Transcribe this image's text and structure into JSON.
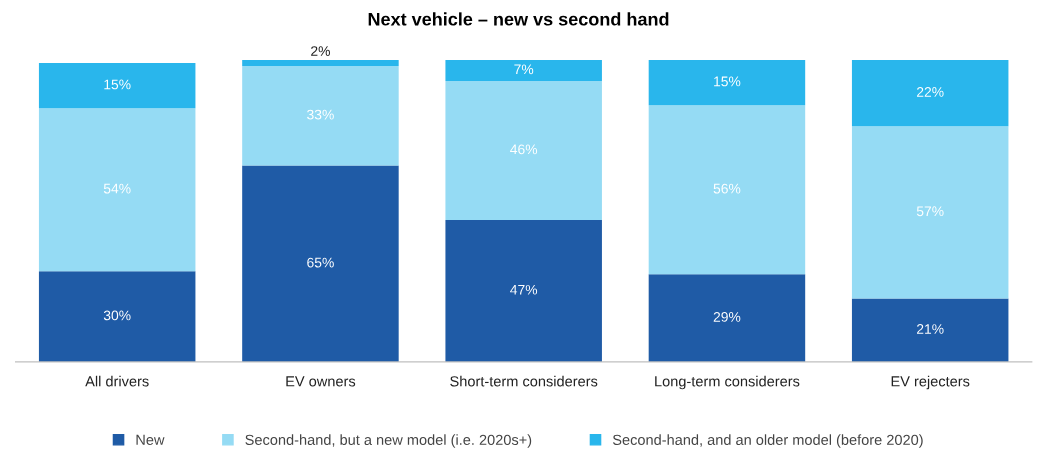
{
  "chart_data": {
    "type": "bar",
    "stacked": true,
    "title": "Next vehicle – new vs second hand",
    "categories": [
      "All drivers",
      "EV owners",
      "Short-term considerers",
      "Long-term considerers",
      "EV rejecters"
    ],
    "series": [
      {
        "name": "New",
        "color": "#1f5ba6",
        "values": [
          30,
          65,
          47,
          29,
          21
        ],
        "value_labels": [
          "30%",
          "65%",
          "47%",
          "29%",
          "21%"
        ]
      },
      {
        "name": "Second-hand, but a new model (i.e. 2020s+)",
        "color": "#95dbf4",
        "values": [
          54,
          33,
          46,
          56,
          57
        ],
        "value_labels": [
          "54%",
          "33%",
          "46%",
          "56%",
          "57%"
        ]
      },
      {
        "name": "Second-hand, and an older model (before 2020)",
        "color": "#29b6ec",
        "values": [
          15,
          2,
          7,
          15,
          22
        ],
        "value_labels": [
          "15%",
          "2%",
          "7%",
          "15%",
          "22%"
        ]
      }
    ],
    "grid": false,
    "legend": "bottom"
  }
}
